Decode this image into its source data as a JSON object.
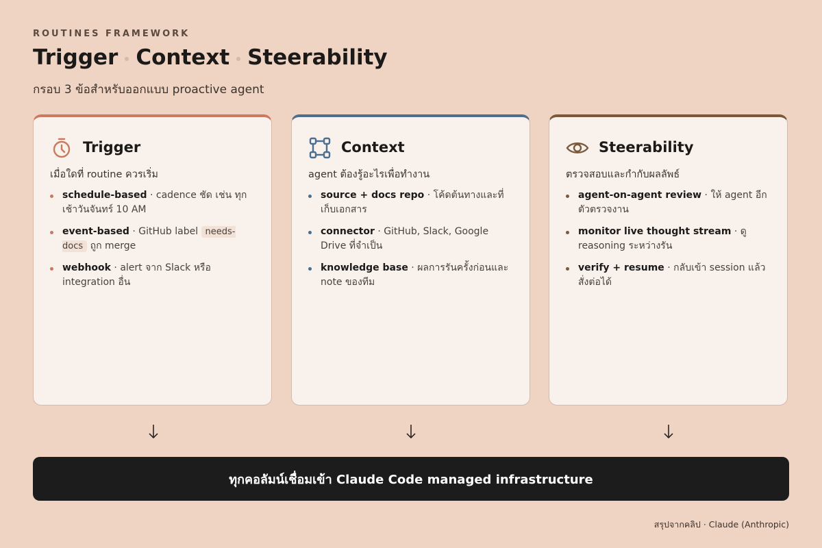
{
  "header": {
    "eyebrow": "ROUTINES FRAMEWORK",
    "title_parts": [
      "Trigger",
      "Context",
      "Steerability"
    ],
    "subtitle": "กรอบ 3 ข้อสำหรับออกแบบ proactive agent"
  },
  "columns": [
    {
      "title": "Trigger",
      "subtitle": "เมื่อใดที่ routine ควรเริ่ม",
      "items": [
        {
          "term": "schedule-based",
          "desc": "· cadence ชัด เช่น ทุกเช้าวันจันทร์ 10 AM"
        },
        {
          "term": "event-based",
          "desc": "· GitHub label",
          "code": "needs-docs",
          "desc_after": "ถูก merge"
        },
        {
          "term": "webhook",
          "desc": "· alert จาก Slack หรือ integration อื่น"
        }
      ]
    },
    {
      "title": "Context",
      "subtitle": "agent ต้องรู้อะไรเพื่อทำงาน",
      "items": [
        {
          "term": "source + docs repo",
          "desc": "· โค้ดต้นทางและที่เก็บเอกสาร"
        },
        {
          "term": "connector",
          "desc": "· GitHub, Slack, Google Drive ที่จำเป็น"
        },
        {
          "term": "knowledge base",
          "desc": "· ผลการรันครั้งก่อนและ note ของทีม"
        }
      ]
    },
    {
      "title": "Steerability",
      "subtitle": "ตรวจสอบและกำกับผลลัพธ์",
      "items": [
        {
          "term": "agent-on-agent review",
          "desc": "· ให้ agent อีกตัวตรวจงาน"
        },
        {
          "term": "monitor live thought stream",
          "desc": "· ดู reasoning ระหว่างรัน"
        },
        {
          "term": "verify + resume",
          "desc": "· กลับเข้า session แล้วสั่งต่อได้"
        }
      ]
    }
  ],
  "banner": "ทุกคอลัมน์เชื่อมเข้า Claude Code managed infrastructure",
  "footer": "สรุปจากคลิป · Claude (Anthropic)"
}
